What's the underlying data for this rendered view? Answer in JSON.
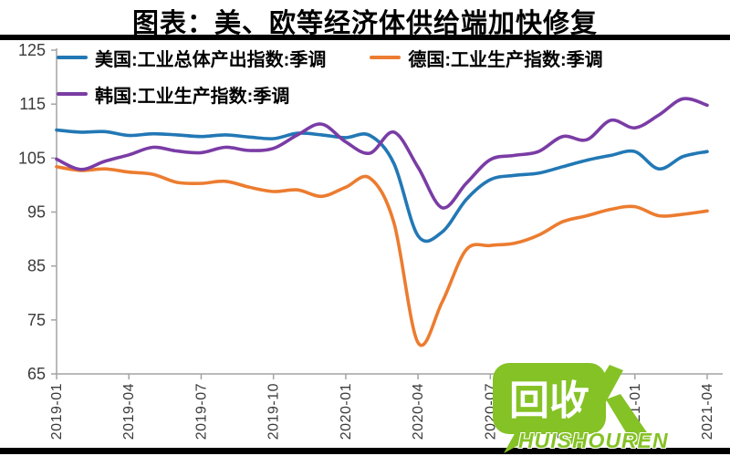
{
  "title": "图表：美、欧等经济体供给端加快修复",
  "watermark": {
    "bubble_text": "回收",
    "figure_glyph": "人",
    "brand": "HUISHOUREN",
    "color": "#85C226"
  },
  "chart_data": {
    "type": "line",
    "x": [
      "2019-01",
      "2019-02",
      "2019-03",
      "2019-04",
      "2019-05",
      "2019-06",
      "2019-07",
      "2019-08",
      "2019-09",
      "2019-10",
      "2019-11",
      "2019-12",
      "2020-01",
      "2020-02",
      "2020-03",
      "2020-04",
      "2020-05",
      "2020-06",
      "2020-07",
      "2020-08",
      "2020-09",
      "2020-10",
      "2020-11",
      "2020-12",
      "2021-01",
      "2021-02",
      "2021-03",
      "2021-04"
    ],
    "x_tick_labels": [
      "2019-01",
      "2019-04",
      "2019-07",
      "2019-10",
      "2020-01",
      "2020-04",
      "2020-07",
      "2020-10",
      "2021-01",
      "2021-04"
    ],
    "ylim": [
      65,
      125
    ],
    "y_ticks": [
      65,
      75,
      85,
      95,
      105,
      115,
      125
    ],
    "grid": false,
    "legend_position": "top-left",
    "legend_rows": [
      [
        0,
        1
      ],
      [
        2
      ]
    ],
    "axis_color": "#A3A3A3",
    "tick_label_color": "#3B3B3B",
    "series": [
      {
        "name": "美国:工业总体产出指数:季调",
        "color": "#2278B5",
        "values": [
          110.2,
          109.8,
          109.9,
          109.2,
          109.5,
          109.3,
          109.0,
          109.3,
          108.9,
          108.6,
          109.6,
          109.3,
          108.8,
          109.2,
          104.0,
          90.6,
          91.3,
          97.3,
          101.0,
          101.8,
          102.2,
          103.4,
          104.6,
          105.5,
          106.2,
          103.0,
          105.3,
          106.2
        ]
      },
      {
        "name": "德国:工业生产指数:季调",
        "color": "#EC7C30",
        "values": [
          103.4,
          102.7,
          103.0,
          102.4,
          102.0,
          100.5,
          100.3,
          100.7,
          99.6,
          98.8,
          99.1,
          97.9,
          99.6,
          101.3,
          93.0,
          70.8,
          78.3,
          88.0,
          88.8,
          89.2,
          90.7,
          93.2,
          94.3,
          95.5,
          96.0,
          94.3,
          94.6,
          95.2
        ]
      },
      {
        "name": "韩国:工业生产指数:季调",
        "color": "#7A3CA5",
        "values": [
          104.8,
          102.9,
          104.4,
          105.6,
          107.0,
          106.3,
          106.0,
          107.0,
          106.4,
          106.8,
          109.3,
          111.3,
          108.0,
          105.9,
          109.8,
          103.3,
          95.8,
          100.3,
          104.7,
          105.5,
          106.2,
          109.0,
          108.4,
          112.0,
          110.6,
          113.0,
          116.0,
          114.8
        ]
      }
    ]
  }
}
